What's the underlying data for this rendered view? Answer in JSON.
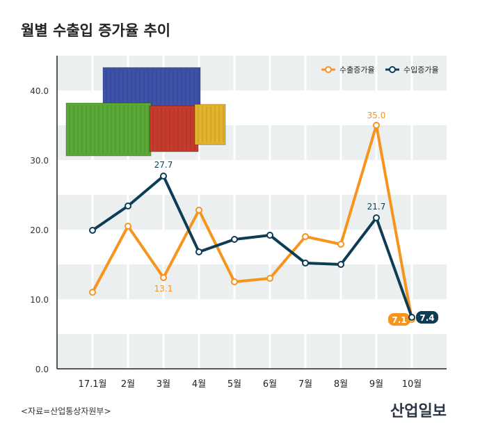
{
  "title": "월별 수출입 증가율 추이",
  "source": "<자료=산업통상자원부>",
  "logo": "산업일보",
  "chart_data": {
    "type": "line",
    "categories": [
      "17.1월",
      "2월",
      "3월",
      "4월",
      "5월",
      "6월",
      "7월",
      "8월",
      "9월",
      "10월"
    ],
    "ylim": [
      0,
      45
    ],
    "yticks": [
      0,
      10,
      20,
      30,
      40
    ],
    "ytick_labels": [
      "0.0",
      "10.0",
      "20.0",
      "30.0",
      "40.0"
    ],
    "legend_position": "top-right",
    "series": [
      {
        "name": "수출증가율",
        "color": "#f7941d",
        "values": [
          11.0,
          20.5,
          13.1,
          22.8,
          12.5,
          13.0,
          19.0,
          17.9,
          35.0,
          7.1
        ],
        "labels": {
          "2": "13.1",
          "8": "35.0",
          "9": "7.1"
        }
      },
      {
        "name": "수입증가율",
        "color": "#0d3c55",
        "values": [
          19.9,
          23.4,
          27.7,
          16.8,
          18.6,
          19.2,
          15.2,
          15.0,
          21.7,
          7.4
        ],
        "labels": {
          "2": "27.7",
          "8": "21.7",
          "9": "7.4"
        }
      }
    ]
  }
}
